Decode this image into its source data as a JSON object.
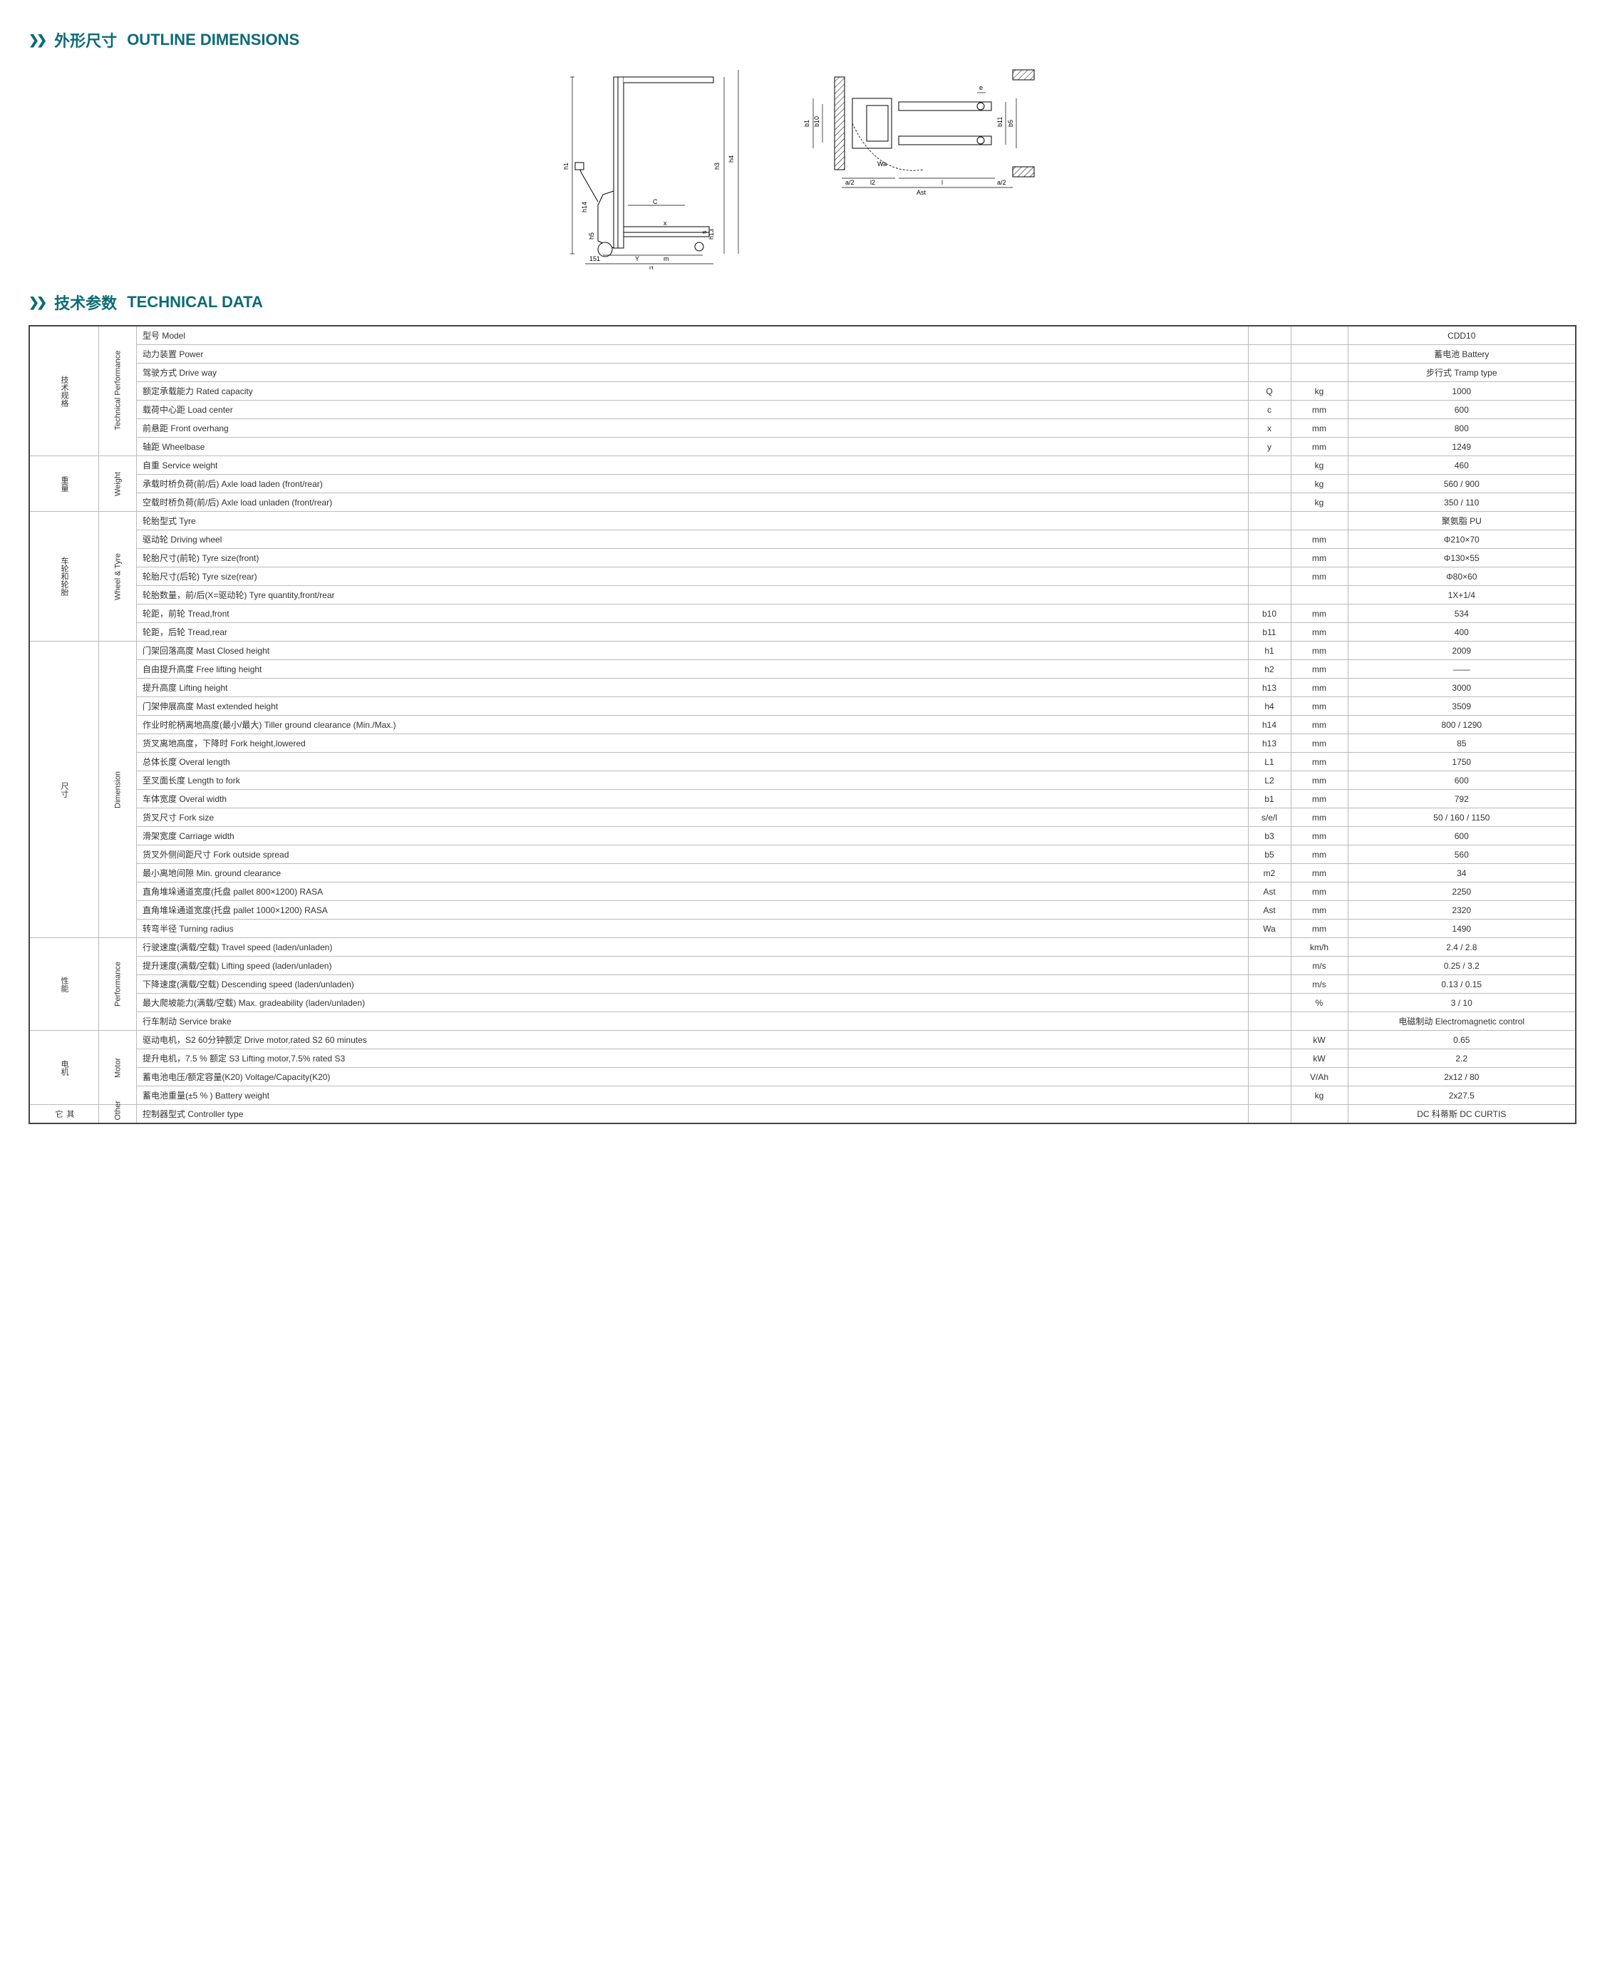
{
  "colors": {
    "accent": "#0d6b76",
    "border": "#444444",
    "rowBorder": "#bbbbbb",
    "text": "#333333"
  },
  "section1": {
    "chevrons": "❯❯",
    "title_cn": "外形尺寸",
    "title_en": "OUTLINE DIMENSIONS"
  },
  "section2": {
    "chevrons": "❯❯",
    "title_cn": "技术参数",
    "title_en": "TECHNICAL DATA"
  },
  "diagram1_labels": [
    "h1",
    "h14",
    "h5",
    "151",
    "l1",
    "Y",
    "m",
    "h3",
    "h4",
    "C",
    "x",
    "s",
    "h13"
  ],
  "diagram2_labels": [
    "b1",
    "b10",
    "Wa",
    "a/2",
    "l2",
    "l",
    "a/2",
    "Ast",
    "e",
    "b11",
    "b5"
  ],
  "groups": [
    {
      "cn": "技术规格",
      "en": "Technical Performance",
      "rows": [
        {
          "desc": "型号 Model",
          "sym": "",
          "unit": "",
          "val": "CDD10"
        },
        {
          "desc": "动力装置 Power",
          "sym": "",
          "unit": "",
          "val": "蓄电池 Battery"
        },
        {
          "desc": "驾驶方式 Drive way",
          "sym": "",
          "unit": "",
          "val": "步行式  Tramp type"
        },
        {
          "desc": "额定承载能力 Rated capacity",
          "sym": "Q",
          "unit": "kg",
          "val": "1000"
        },
        {
          "desc": "载荷中心距 Load center",
          "sym": "c",
          "unit": "mm",
          "val": "600"
        },
        {
          "desc": "前悬距 Front overhang",
          "sym": "x",
          "unit": "mm",
          "val": "800"
        },
        {
          "desc": "轴距 Wheelbase",
          "sym": "y",
          "unit": "mm",
          "val": "1249"
        }
      ]
    },
    {
      "cn": "重量",
      "en": "Weight",
      "rows": [
        {
          "desc": "自重 Service weight",
          "sym": "",
          "unit": "kg",
          "val": "460"
        },
        {
          "desc": "承载时桥负荷(前/后) Axle load laden (front/rear)",
          "sym": "",
          "unit": "kg",
          "val": "560 / 900"
        },
        {
          "desc": "空载时桥负荷(前/后) Axle load unladen (front/rear)",
          "sym": "",
          "unit": "kg",
          "val": "350 / 110"
        }
      ]
    },
    {
      "cn": "车轮和轮胎",
      "en": "Wheel & Tyre",
      "rows": [
        {
          "desc": "轮胎型式 Tyre",
          "sym": "",
          "unit": "",
          "val": "聚氨脂 PU"
        },
        {
          "desc": "驱动轮 Driving wheel",
          "sym": "",
          "unit": "mm",
          "val": "Φ210×70"
        },
        {
          "desc": "轮胎尺寸(前轮) Tyre size(front)",
          "sym": "",
          "unit": "mm",
          "val": "Φ130×55"
        },
        {
          "desc": "轮胎尺寸(后轮) Tyre size(rear)",
          "sym": "",
          "unit": "mm",
          "val": "Φ80×60"
        },
        {
          "desc": "轮胎数量，前/后(X=驱动轮) Tyre quantity,front/rear",
          "sym": "",
          "unit": "",
          "val": "1X+1/4"
        },
        {
          "desc": "轮距，前轮 Tread,front",
          "sym": "b10",
          "unit": "mm",
          "val": "534"
        },
        {
          "desc": "轮距，后轮 Tread,rear",
          "sym": "b11",
          "unit": "mm",
          "val": "400"
        }
      ]
    },
    {
      "cn": "尺寸",
      "en": "Dimension",
      "rows": [
        {
          "desc": "门架回落高度 Mast Closed height",
          "sym": "h1",
          "unit": "mm",
          "val": "2009"
        },
        {
          "desc": "自由提升高度 Free lifting height",
          "sym": "h2",
          "unit": "mm",
          "val": "——"
        },
        {
          "desc": "提升高度 Lifting height",
          "sym": "h13",
          "unit": "mm",
          "val": "3000"
        },
        {
          "desc": "门架伸展高度 Mast extended height",
          "sym": "h4",
          "unit": "mm",
          "val": "3509"
        },
        {
          "desc": "作业时舵柄离地高度(最小/最大)  Tiller ground clearance (Min./Max.)",
          "sym": "h14",
          "unit": "mm",
          "val": "800 / 1290"
        },
        {
          "desc": "货叉离地高度，下降时 Fork height,lowered",
          "sym": "h13",
          "unit": "mm",
          "val": "85"
        },
        {
          "desc": "总体长度 Overal length",
          "sym": "L1",
          "unit": "mm",
          "val": "1750"
        },
        {
          "desc": "至叉面长度 Length to fork",
          "sym": "L2",
          "unit": "mm",
          "val": "600"
        },
        {
          "desc": "车体宽度 Overal width",
          "sym": "b1",
          "unit": "mm",
          "val": "792"
        },
        {
          "desc": "货叉尺寸 Fork size",
          "sym": "s/e/l",
          "unit": "mm",
          "val": "50 / 160 / 1150"
        },
        {
          "desc": "滑架宽度 Carriage width",
          "sym": "b3",
          "unit": "mm",
          "val": "600"
        },
        {
          "desc": "货叉外侧间距尺寸 Fork outside spread",
          "sym": "b5",
          "unit": "mm",
          "val": "560"
        },
        {
          "desc": "最小离地间隙 Min. ground clearance",
          "sym": "m2",
          "unit": "mm",
          "val": "34"
        },
        {
          "desc": "直角堆垛通道宽度(托盘 pallet 800×1200)  RASA",
          "sym": "Ast",
          "unit": "mm",
          "val": "2250"
        },
        {
          "desc": "直角堆垛通道宽度(托盘 pallet 1000×1200)  RASA",
          "sym": "Ast",
          "unit": "mm",
          "val": "2320"
        },
        {
          "desc": "转弯半径 Turning radius",
          "sym": "Wa",
          "unit": "mm",
          "val": "1490"
        }
      ]
    },
    {
      "cn": "性能",
      "en": "Performance",
      "rows": [
        {
          "desc": "行驶速度(满载/空载) Travel speed (laden/unladen)",
          "sym": "",
          "unit": "km/h",
          "val": "2.4 / 2.8"
        },
        {
          "desc": "提升速度(满载/空载) Lifting speed (laden/unladen)",
          "sym": "",
          "unit": "m/s",
          "val": "0.25 / 3.2"
        },
        {
          "desc": "下降速度(满载/空载) Descending speed (laden/unladen)",
          "sym": "",
          "unit": "m/s",
          "val": "0.13 / 0.15"
        },
        {
          "desc": "最大爬坡能力(满载/空载) Max. gradeability (laden/unladen)",
          "sym": "",
          "unit": "%",
          "val": "3 / 10"
        },
        {
          "desc": "行车制动 Service brake",
          "sym": "",
          "unit": "",
          "val": "电磁制动 Electromagnetic control"
        }
      ]
    },
    {
      "cn": "电机",
      "en": "Motor",
      "rows": [
        {
          "desc": "驱动电机，S2 60分钟额定 Drive motor,rated S2 60 minutes",
          "sym": "",
          "unit": "kW",
          "val": "0.65"
        },
        {
          "desc": "提升电机，7.5 % 额定 S3 Lifting motor,7.5% rated S3",
          "sym": "",
          "unit": "kW",
          "val": "2.2"
        },
        {
          "desc": "蓄电池电压/额定容量(K20) Voltage/Capacity(K20)",
          "sym": "",
          "unit": "V/Ah",
          "val": "2x12 / 80"
        },
        {
          "desc": "蓄电池重量(±5 % ) Battery weight",
          "sym": "",
          "unit": "kg",
          "val": "2x27.5"
        }
      ]
    },
    {
      "cn": "其它",
      "en": "Other",
      "rows": [
        {
          "desc": "控制器型式 Controller type",
          "sym": "",
          "unit": "",
          "val": "DC 科蒂斯 DC CURTIS"
        }
      ]
    }
  ]
}
